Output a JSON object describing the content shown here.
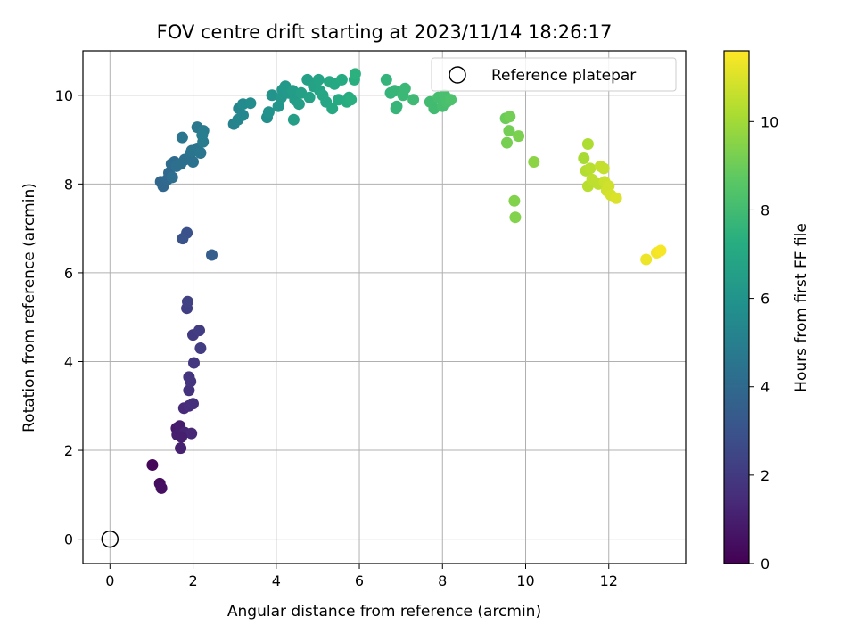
{
  "chart_data": {
    "type": "scatter",
    "title": "FOV centre drift starting at 2023/11/14 18:26:17",
    "xlabel": "Angular distance from reference (arcmin)",
    "ylabel": "Rotation from reference (arcmin)",
    "xlim": [
      -0.65,
      13.85
    ],
    "ylim": [
      -0.55,
      11.0
    ],
    "xticks": [
      "0",
      "2",
      "4",
      "6",
      "8",
      "10",
      "12"
    ],
    "yticks": [
      "0",
      "2",
      "4",
      "6",
      "8",
      "10"
    ],
    "grid": true,
    "legend": {
      "placement": "top-right",
      "entries": [
        "Reference platepar"
      ]
    },
    "reference": {
      "x": 0,
      "y": 0,
      "label": "Reference platepar"
    },
    "colorbar": {
      "label": "Hours from first FF file",
      "range": [
        0,
        11.6
      ],
      "ticks": [
        "0",
        "2",
        "4",
        "6",
        "8",
        "10"
      ],
      "colormap": "viridis"
    },
    "points": [
      [
        1.02,
        1.67,
        0.2
      ],
      [
        1.2,
        1.25,
        0.4
      ],
      [
        1.24,
        1.15,
        0.5
      ],
      [
        1.6,
        2.5,
        0.8
      ],
      [
        1.68,
        2.55,
        0.9
      ],
      [
        1.62,
        2.35,
        1.0
      ],
      [
        1.7,
        2.05,
        1.1
      ],
      [
        1.8,
        2.4,
        1.2
      ],
      [
        1.96,
        2.38,
        1.3
      ],
      [
        1.72,
        2.3,
        1.0
      ],
      [
        1.78,
        2.95,
        1.4
      ],
      [
        1.9,
        3.0,
        1.5
      ],
      [
        2.0,
        3.05,
        1.6
      ],
      [
        1.9,
        3.35,
        1.7
      ],
      [
        1.94,
        3.55,
        1.8
      ],
      [
        1.9,
        3.65,
        1.8
      ],
      [
        2.02,
        3.97,
        1.9
      ],
      [
        2.0,
        4.6,
        2.0
      ],
      [
        2.15,
        4.7,
        2.1
      ],
      [
        2.18,
        4.3,
        2.1
      ],
      [
        1.85,
        5.2,
        2.2
      ],
      [
        1.87,
        5.35,
        2.3
      ],
      [
        1.85,
        6.9,
        2.9
      ],
      [
        1.75,
        6.77,
        3.0
      ],
      [
        2.45,
        6.4,
        3.5
      ],
      [
        1.22,
        8.05,
        3.9
      ],
      [
        1.28,
        7.95,
        3.9
      ],
      [
        1.38,
        8.1,
        4.0
      ],
      [
        1.42,
        8.25,
        4.0
      ],
      [
        1.48,
        8.45,
        4.1
      ],
      [
        1.55,
        8.5,
        4.1
      ],
      [
        1.5,
        8.15,
        4.2
      ],
      [
        1.6,
        8.4,
        4.2
      ],
      [
        1.7,
        8.45,
        4.3
      ],
      [
        1.8,
        8.55,
        4.3
      ],
      [
        1.95,
        8.7,
        4.4
      ],
      [
        2.0,
        8.5,
        4.4
      ],
      [
        1.97,
        8.75,
        4.5
      ],
      [
        2.1,
        8.8,
        4.5
      ],
      [
        2.18,
        8.7,
        4.6
      ],
      [
        1.74,
        9.05,
        4.6
      ],
      [
        2.1,
        9.28,
        4.7
      ],
      [
        2.25,
        9.2,
        4.8
      ],
      [
        2.24,
        8.95,
        4.8
      ],
      [
        2.22,
        9.1,
        4.9
      ],
      [
        2.98,
        9.35,
        5.2
      ],
      [
        3.08,
        9.45,
        5.3
      ],
      [
        3.1,
        9.7,
        5.3
      ],
      [
        3.2,
        9.55,
        5.4
      ],
      [
        3.2,
        9.8,
        5.5
      ],
      [
        3.38,
        9.82,
        5.6
      ],
      [
        3.78,
        9.5,
        5.8
      ],
      [
        3.82,
        9.62,
        5.9
      ],
      [
        3.9,
        10.0,
        6.0
      ],
      [
        4.05,
        9.75,
        6.1
      ],
      [
        4.12,
        9.95,
        6.2
      ],
      [
        4.15,
        10.12,
        6.2
      ],
      [
        4.22,
        10.2,
        6.3
      ],
      [
        4.3,
        10.05,
        6.3
      ],
      [
        4.4,
        10.1,
        6.4
      ],
      [
        4.45,
        9.9,
        6.4
      ],
      [
        4.42,
        9.45,
        6.5
      ],
      [
        4.55,
        9.8,
        6.5
      ],
      [
        4.6,
        10.05,
        6.6
      ],
      [
        4.75,
        10.35,
        6.6
      ],
      [
        4.8,
        9.95,
        6.7
      ],
      [
        4.9,
        10.2,
        6.7
      ],
      [
        5.02,
        10.35,
        6.8
      ],
      [
        5.05,
        10.1,
        6.8
      ],
      [
        5.12,
        10.0,
        6.9
      ],
      [
        5.2,
        9.85,
        6.9
      ],
      [
        5.28,
        10.3,
        7.0
      ],
      [
        5.35,
        9.7,
        7.0
      ],
      [
        5.4,
        10.25,
        7.0
      ],
      [
        5.5,
        9.9,
        7.1
      ],
      [
        5.58,
        10.35,
        7.1
      ],
      [
        5.7,
        9.85,
        7.2
      ],
      [
        5.75,
        9.95,
        7.2
      ],
      [
        5.8,
        9.9,
        7.3
      ],
      [
        5.88,
        10.35,
        7.3
      ],
      [
        5.9,
        10.48,
        7.4
      ],
      [
        6.65,
        10.35,
        7.6
      ],
      [
        6.75,
        10.05,
        7.6
      ],
      [
        6.85,
        10.1,
        7.7
      ],
      [
        6.9,
        9.75,
        7.7
      ],
      [
        6.88,
        9.7,
        7.7
      ],
      [
        7.05,
        10.0,
        7.8
      ],
      [
        7.1,
        10.15,
        7.8
      ],
      [
        7.3,
        9.9,
        7.9
      ],
      [
        7.7,
        9.85,
        8.0
      ],
      [
        7.8,
        9.7,
        8.0
      ],
      [
        7.9,
        9.95,
        8.1
      ],
      [
        8.0,
        9.75,
        8.1
      ],
      [
        8.05,
        10.0,
        8.2
      ],
      [
        8.1,
        9.85,
        8.2
      ],
      [
        8.2,
        9.9,
        8.3
      ],
      [
        9.52,
        9.48,
        9.0
      ],
      [
        9.62,
        9.52,
        9.1
      ],
      [
        9.6,
        9.2,
        9.1
      ],
      [
        9.55,
        8.93,
        9.2
      ],
      [
        9.83,
        9.08,
        9.3
      ],
      [
        9.73,
        7.62,
        9.4
      ],
      [
        9.75,
        7.25,
        9.4
      ],
      [
        10.2,
        8.5,
        9.6
      ],
      [
        11.4,
        8.58,
        10.1
      ],
      [
        11.5,
        8.9,
        10.2
      ],
      [
        11.45,
        8.3,
        10.3
      ],
      [
        11.55,
        8.35,
        10.4
      ],
      [
        11.5,
        7.95,
        10.4
      ],
      [
        11.6,
        8.1,
        10.5
      ],
      [
        11.75,
        8.0,
        10.5
      ],
      [
        11.8,
        8.4,
        10.6
      ],
      [
        11.88,
        8.35,
        10.6
      ],
      [
        11.9,
        8.05,
        10.7
      ],
      [
        11.95,
        7.85,
        10.8
      ],
      [
        12.0,
        7.95,
        10.8
      ],
      [
        12.05,
        7.75,
        10.9
      ],
      [
        12.18,
        7.68,
        11.0
      ],
      [
        12.9,
        6.3,
        11.3
      ],
      [
        13.15,
        6.45,
        11.4
      ],
      [
        13.25,
        6.5,
        11.5
      ]
    ]
  }
}
